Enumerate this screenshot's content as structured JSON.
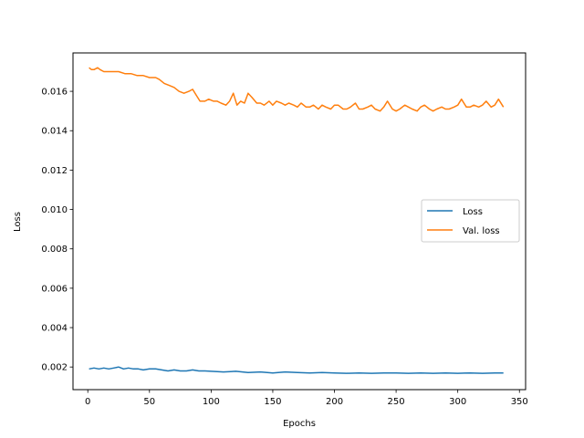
{
  "chart_data": {
    "type": "line",
    "title": "",
    "xlabel": "Epochs",
    "ylabel": "Loss",
    "xlim": [
      -12,
      355
    ],
    "ylim": [
      0.00085,
      0.01795
    ],
    "x_ticks": [
      0,
      50,
      100,
      150,
      200,
      250,
      300,
      350
    ],
    "x_tick_labels": [
      "0",
      "50",
      "100",
      "150",
      "200",
      "250",
      "300",
      "350"
    ],
    "y_ticks": [
      0.002,
      0.004,
      0.006,
      0.008,
      0.01,
      0.012,
      0.014,
      0.016
    ],
    "y_tick_labels": [
      "0.002",
      "0.004",
      "0.006",
      "0.008",
      "0.010",
      "0.012",
      "0.014",
      "0.016"
    ],
    "grid": false,
    "legend_position": "center-right",
    "series": [
      {
        "name": "Loss",
        "color": "#1f77b4",
        "x": [
          1,
          5,
          9,
          13,
          17,
          21,
          25,
          29,
          33,
          37,
          41,
          45,
          50,
          55,
          60,
          65,
          70,
          75,
          80,
          85,
          90,
          95,
          100,
          110,
          120,
          130,
          140,
          150,
          160,
          170,
          180,
          190,
          200,
          210,
          220,
          230,
          240,
          250,
          260,
          270,
          280,
          290,
          300,
          310,
          320,
          330,
          337
        ],
        "values": [
          0.0019,
          0.00195,
          0.0019,
          0.00195,
          0.0019,
          0.00195,
          0.002,
          0.0019,
          0.00195,
          0.0019,
          0.0019,
          0.00185,
          0.0019,
          0.0019,
          0.00185,
          0.0018,
          0.00185,
          0.0018,
          0.0018,
          0.00185,
          0.0018,
          0.0018,
          0.00178,
          0.00175,
          0.00178,
          0.00172,
          0.00175,
          0.0017,
          0.00175,
          0.00172,
          0.0017,
          0.00172,
          0.0017,
          0.00168,
          0.0017,
          0.00168,
          0.0017,
          0.0017,
          0.00168,
          0.0017,
          0.00168,
          0.0017,
          0.00168,
          0.0017,
          0.00168,
          0.0017,
          0.0017
        ]
      },
      {
        "name": "Val. loss",
        "color": "#ff7f0e",
        "x": [
          1,
          3,
          5,
          8,
          10,
          13,
          16,
          20,
          25,
          30,
          35,
          40,
          45,
          50,
          55,
          58,
          62,
          66,
          70,
          74,
          78,
          82,
          85,
          88,
          91,
          95,
          98,
          102,
          105,
          108,
          112,
          115,
          118,
          121,
          124,
          127,
          130,
          133,
          137,
          140,
          143,
          147,
          150,
          153,
          157,
          160,
          163,
          167,
          170,
          173,
          177,
          180,
          183,
          187,
          190,
          193,
          197,
          200,
          203,
          207,
          210,
          213,
          217,
          220,
          223,
          227,
          230,
          233,
          237,
          240,
          243,
          247,
          250,
          253,
          257,
          260,
          263,
          267,
          270,
          273,
          277,
          280,
          283,
          287,
          290,
          293,
          297,
          300,
          303,
          307,
          310,
          313,
          317,
          320,
          323,
          327,
          330,
          333,
          337
        ],
        "values": [
          0.0172,
          0.0171,
          0.0171,
          0.0172,
          0.0171,
          0.017,
          0.017,
          0.017,
          0.017,
          0.0169,
          0.0169,
          0.0168,
          0.0168,
          0.0167,
          0.0167,
          0.0166,
          0.0164,
          0.0163,
          0.0162,
          0.016,
          0.0159,
          0.016,
          0.0161,
          0.0158,
          0.0155,
          0.0155,
          0.0156,
          0.0155,
          0.0155,
          0.0154,
          0.0153,
          0.0155,
          0.0159,
          0.0153,
          0.0155,
          0.0154,
          0.0159,
          0.0157,
          0.0154,
          0.0154,
          0.0153,
          0.0155,
          0.0153,
          0.0155,
          0.0154,
          0.0153,
          0.0154,
          0.0153,
          0.0152,
          0.0154,
          0.0152,
          0.0152,
          0.0153,
          0.0151,
          0.0153,
          0.0152,
          0.0151,
          0.0153,
          0.0153,
          0.0151,
          0.0151,
          0.0152,
          0.0154,
          0.0151,
          0.0151,
          0.0152,
          0.0153,
          0.0151,
          0.015,
          0.0152,
          0.0155,
          0.0151,
          0.015,
          0.0151,
          0.0153,
          0.0152,
          0.0151,
          0.015,
          0.0152,
          0.0153,
          0.0151,
          0.015,
          0.0151,
          0.0152,
          0.0151,
          0.0151,
          0.0152,
          0.0153,
          0.0156,
          0.0152,
          0.0152,
          0.0153,
          0.0152,
          0.0153,
          0.0155,
          0.0152,
          0.0153,
          0.0156,
          0.0152
        ]
      }
    ]
  }
}
